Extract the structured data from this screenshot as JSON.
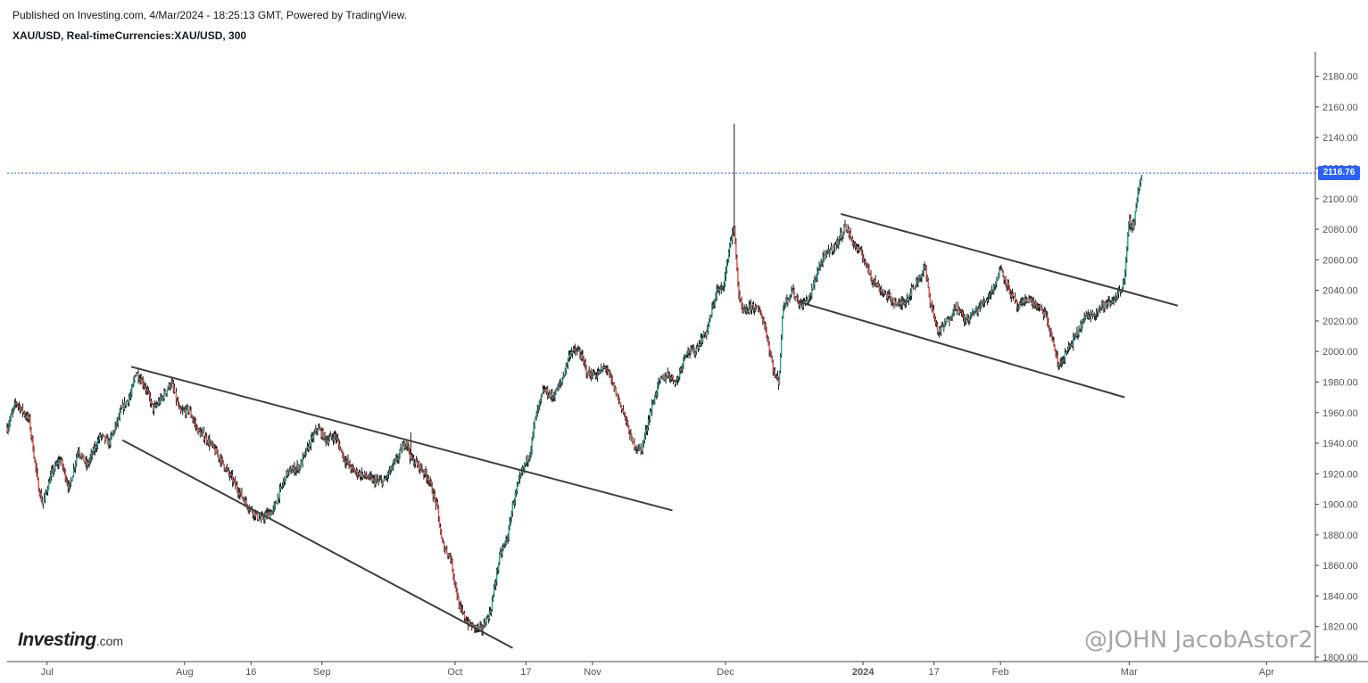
{
  "header": {
    "published": "Published on Investing.com, 4/Mar/2024 - 18:25:13 GMT, Powered by TradingView.",
    "symbol": "XAU/USD, Real-timeCurrencies:XAU/USD, 300"
  },
  "logo": {
    "brand": "Investing",
    "suffix": ".com"
  },
  "watermark": "@JOHN JacobAstor2",
  "colors": {
    "up": "#26a69a",
    "down": "#ef5350",
    "wick": "#1a1a1a",
    "trendline": "#3d3d3d",
    "priceline": "#2962ff"
  },
  "chart_data": {
    "type": "candlestick",
    "title": "XAU/USD, Real-timeCurrencies:XAU/USD, 300",
    "ylim": [
      1800,
      2190
    ],
    "y_ticks": [
      1800,
      1820,
      1840,
      1860,
      1880,
      1900,
      1920,
      1940,
      1960,
      1980,
      2000,
      2020,
      2040,
      2060,
      2080,
      2100,
      2120,
      2140,
      2160,
      2180
    ],
    "y_tick_labels": [
      "1800.00",
      "1820.00",
      "1840.00",
      "1860.00",
      "1880.00",
      "1900.00",
      "1920.00",
      "1940.00",
      "1960.00",
      "1980.00",
      "2000.00",
      "2020.00",
      "2040.00",
      "2060.00",
      "2080.00",
      "2100.00",
      "2120.00",
      "2140.00",
      "2160.00",
      "2180.00"
    ],
    "x_ticks": [
      {
        "label": "Jul",
        "date": "2023-07-01"
      },
      {
        "label": "Aug",
        "date": "2023-08-01"
      },
      {
        "label": "16",
        "date": "2023-08-16"
      },
      {
        "label": "Sep",
        "date": "2023-09-01"
      },
      {
        "label": "Oct",
        "date": "2023-10-01"
      },
      {
        "label": "17",
        "date": "2023-10-17"
      },
      {
        "label": "Nov",
        "date": "2023-11-01"
      },
      {
        "label": "Dec",
        "date": "2023-12-01"
      },
      {
        "label": "2024",
        "date": "2024-01-01",
        "bold": true
      },
      {
        "label": "17",
        "date": "2024-01-17"
      },
      {
        "label": "Feb",
        "date": "2024-02-01"
      },
      {
        "label": "Mar",
        "date": "2024-03-01"
      },
      {
        "label": "Apr",
        "date": "2024-04-01"
      }
    ],
    "price_path": [
      [
        "2023-06-22",
        1950
      ],
      [
        "2023-06-24",
        1967
      ],
      [
        "2023-06-27",
        1955
      ],
      [
        "2023-06-29",
        1912
      ],
      [
        "2023-06-30",
        1900
      ],
      [
        "2023-07-02",
        1920
      ],
      [
        "2023-07-04",
        1930
      ],
      [
        "2023-07-06",
        1910
      ],
      [
        "2023-07-08",
        1936
      ],
      [
        "2023-07-10",
        1925
      ],
      [
        "2023-07-13",
        1945
      ],
      [
        "2023-07-15",
        1940
      ],
      [
        "2023-07-18",
        1963
      ],
      [
        "2023-07-20",
        1972
      ],
      [
        "2023-07-21",
        1987
      ],
      [
        "2023-07-23",
        1978
      ],
      [
        "2023-07-25",
        1962
      ],
      [
        "2023-07-27",
        1970
      ],
      [
        "2023-07-29",
        1980
      ],
      [
        "2023-07-31",
        1960
      ],
      [
        "2023-08-02",
        1962
      ],
      [
        "2023-08-04",
        1948
      ],
      [
        "2023-08-06",
        1943
      ],
      [
        "2023-08-09",
        1930
      ],
      [
        "2023-08-12",
        1915
      ],
      [
        "2023-08-15",
        1900
      ],
      [
        "2023-08-18",
        1890
      ],
      [
        "2023-08-21",
        1896
      ],
      [
        "2023-08-24",
        1920
      ],
      [
        "2023-08-27",
        1925
      ],
      [
        "2023-08-29",
        1938
      ],
      [
        "2023-08-31",
        1950
      ],
      [
        "2023-09-02",
        1942
      ],
      [
        "2023-09-04",
        1945
      ],
      [
        "2023-09-06",
        1930
      ],
      [
        "2023-09-08",
        1922
      ],
      [
        "2023-09-11",
        1918
      ],
      [
        "2023-09-13",
        1915
      ],
      [
        "2023-09-15",
        1915
      ],
      [
        "2023-09-18",
        1930
      ],
      [
        "2023-09-20",
        1942
      ],
      [
        "2023-09-21",
        1930
      ],
      [
        "2023-09-23",
        1925
      ],
      [
        "2023-09-25",
        1917
      ],
      [
        "2023-09-27",
        1898
      ],
      [
        "2023-09-28",
        1875
      ],
      [
        "2023-09-30",
        1865
      ],
      [
        "2023-10-02",
        1832
      ],
      [
        "2023-10-04",
        1822
      ],
      [
        "2023-10-05",
        1820
      ],
      [
        "2023-10-07",
        1818
      ],
      [
        "2023-10-09",
        1830
      ],
      [
        "2023-10-11",
        1865
      ],
      [
        "2023-10-13",
        1880
      ],
      [
        "2023-10-14",
        1900
      ],
      [
        "2023-10-16",
        1920
      ],
      [
        "2023-10-18",
        1935
      ],
      [
        "2023-10-19",
        1955
      ],
      [
        "2023-10-21",
        1975
      ],
      [
        "2023-10-23",
        1970
      ],
      [
        "2023-10-25",
        1980
      ],
      [
        "2023-10-27",
        2000
      ],
      [
        "2023-10-29",
        2000
      ],
      [
        "2023-10-31",
        1985
      ],
      [
        "2023-11-02",
        1985
      ],
      [
        "2023-11-04",
        1990
      ],
      [
        "2023-11-06",
        1975
      ],
      [
        "2023-11-08",
        1960
      ],
      [
        "2023-11-10",
        1940
      ],
      [
        "2023-11-12",
        1935
      ],
      [
        "2023-11-14",
        1960
      ],
      [
        "2023-11-16",
        1980
      ],
      [
        "2023-11-18",
        1985
      ],
      [
        "2023-11-20",
        1980
      ],
      [
        "2023-11-22",
        2000
      ],
      [
        "2023-11-24",
        2000
      ],
      [
        "2023-11-27",
        2015
      ],
      [
        "2023-11-29",
        2040
      ],
      [
        "2023-11-30",
        2040
      ],
      [
        "2023-12-01",
        2050
      ],
      [
        "2023-12-02",
        2072
      ],
      [
        "2023-12-03",
        2080
      ],
      [
        "2023-12-04",
        2035
      ],
      [
        "2023-12-05",
        2025
      ],
      [
        "2023-12-07",
        2030
      ],
      [
        "2023-12-09",
        2025
      ],
      [
        "2023-12-10",
        2015
      ],
      [
        "2023-12-12",
        1985
      ],
      [
        "2023-12-13",
        1980
      ],
      [
        "2023-12-14",
        2030
      ],
      [
        "2023-12-16",
        2040
      ],
      [
        "2023-12-18",
        2030
      ],
      [
        "2023-12-20",
        2035
      ],
      [
        "2023-12-22",
        2055
      ],
      [
        "2023-12-24",
        2065
      ],
      [
        "2023-12-26",
        2070
      ],
      [
        "2023-12-28",
        2082
      ],
      [
        "2023-12-30",
        2070
      ],
      [
        "2024-01-01",
        2062
      ],
      [
        "2024-01-03",
        2048
      ],
      [
        "2024-01-05",
        2040
      ],
      [
        "2024-01-07",
        2035
      ],
      [
        "2024-01-09",
        2030
      ],
      [
        "2024-01-11",
        2035
      ],
      [
        "2024-01-13",
        2045
      ],
      [
        "2024-01-15",
        2055
      ],
      [
        "2024-01-16",
        2035
      ],
      [
        "2024-01-18",
        2012
      ],
      [
        "2024-01-20",
        2020
      ],
      [
        "2024-01-22",
        2030
      ],
      [
        "2024-01-24",
        2020
      ],
      [
        "2024-01-26",
        2025
      ],
      [
        "2024-01-29",
        2035
      ],
      [
        "2024-01-31",
        2045
      ],
      [
        "2024-02-01",
        2055
      ],
      [
        "2024-02-03",
        2040
      ],
      [
        "2024-02-05",
        2028
      ],
      [
        "2024-02-07",
        2035
      ],
      [
        "2024-02-09",
        2030
      ],
      [
        "2024-02-11",
        2025
      ],
      [
        "2024-02-13",
        2005
      ],
      [
        "2024-02-14",
        1990
      ],
      [
        "2024-02-16",
        2000
      ],
      [
        "2024-02-18",
        2010
      ],
      [
        "2024-02-20",
        2022
      ],
      [
        "2024-02-22",
        2025
      ],
      [
        "2024-02-24",
        2030
      ],
      [
        "2024-02-26",
        2032
      ],
      [
        "2024-02-28",
        2040
      ],
      [
        "2024-02-29",
        2048
      ],
      [
        "2024-03-01",
        2085
      ],
      [
        "2024-03-02",
        2082
      ],
      [
        "2024-03-03",
        2105
      ],
      [
        "2024-03-04",
        2116.76
      ]
    ],
    "spikes": [
      {
        "date": "2023-09-21",
        "high": 1947
      },
      {
        "date": "2023-12-03",
        "high": 2149
      },
      {
        "date": "2024-03-04",
        "high": 2120
      }
    ],
    "trendlines": [
      {
        "from": [
          "2023-07-20",
          1990
        ],
        "to": [
          "2023-11-19",
          1896
        ]
      },
      {
        "from": [
          "2023-07-18",
          1942
        ],
        "to": [
          "2023-10-14",
          1806
        ]
      },
      {
        "from": [
          "2023-12-27",
          2090
        ],
        "to": [
          "2024-03-12",
          2030
        ]
      },
      {
        "from": [
          "2023-12-18",
          2032
        ],
        "to": [
          "2024-02-29",
          1970
        ]
      }
    ],
    "last_price": 2116.76,
    "last_price_label": "2116.76",
    "grid": false
  }
}
